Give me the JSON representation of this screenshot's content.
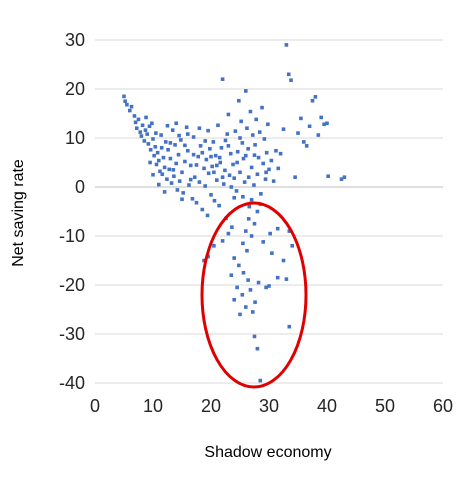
{
  "chart_data": {
    "type": "scatter",
    "title": "",
    "xlabel": "Shadow economy",
    "ylabel": "Net saving rate",
    "xlim": [
      0,
      60
    ],
    "ylim": [
      -40,
      30
    ],
    "x_ticks": [
      "0",
      "10",
      "20",
      "30",
      "40",
      "50",
      "60"
    ],
    "y_ticks": [
      "30",
      "20",
      "10",
      "0",
      "-10",
      "-20",
      "-30",
      "-40"
    ],
    "grid": "horizontal",
    "legend": "none",
    "annotation": "red ellipse highlighting low-saving observations",
    "series": [
      {
        "marker_color": "#4472c4",
        "points": [
          [
            5.0,
            18.5
          ],
          [
            5.2,
            17.5
          ],
          [
            5.5,
            16.8
          ],
          [
            6.0,
            15.6
          ],
          [
            6.3,
            16.4
          ],
          [
            6.8,
            14.5
          ],
          [
            7.0,
            13.2
          ],
          [
            7.2,
            12.0
          ],
          [
            7.5,
            13.8
          ],
          [
            7.8,
            11.2
          ],
          [
            8.0,
            10.4
          ],
          [
            8.2,
            12.6
          ],
          [
            8.5,
            9.4
          ],
          [
            8.7,
            11.6
          ],
          [
            9.0,
            10.8
          ],
          [
            9.2,
            8.8
          ],
          [
            9.4,
            12.4
          ],
          [
            9.6,
            7.6
          ],
          [
            9.8,
            13.0
          ],
          [
            10.0,
            9.8
          ],
          [
            10.2,
            6.4
          ],
          [
            10.4,
            8.2
          ],
          [
            10.6,
            4.6
          ],
          [
            10.8,
            7.0
          ],
          [
            11.0,
            5.4
          ],
          [
            11.2,
            3.2
          ],
          [
            11.4,
            10.6
          ],
          [
            11.6,
            2.6
          ],
          [
            11.8,
            6.0
          ],
          [
            12.0,
            4.0
          ],
          [
            12.2,
            9.2
          ],
          [
            12.4,
            1.6
          ],
          [
            12.6,
            7.6
          ],
          [
            12.8,
            3.6
          ],
          [
            13.0,
            5.8
          ],
          [
            13.2,
            0.8
          ],
          [
            13.4,
            11.6
          ],
          [
            13.6,
            2.2
          ],
          [
            13.8,
            8.6
          ],
          [
            14.0,
            4.8
          ],
          [
            14.2,
            -0.6
          ],
          [
            14.4,
            6.6
          ],
          [
            14.6,
            1.2
          ],
          [
            14.8,
            9.6
          ],
          [
            15.0,
            3.0
          ],
          [
            15.2,
            -1.2
          ],
          [
            15.5,
            5.2
          ],
          [
            15.8,
            12.2
          ],
          [
            16.0,
            7.4
          ],
          [
            16.2,
            0.4
          ],
          [
            16.5,
            4.4
          ],
          [
            16.8,
            -2.4
          ],
          [
            17.0,
            10.2
          ],
          [
            17.2,
            2.0
          ],
          [
            17.5,
            -3.2
          ],
          [
            17.8,
            6.2
          ],
          [
            18.0,
            1.0
          ],
          [
            18.2,
            8.4
          ],
          [
            18.5,
            -4.6
          ],
          [
            18.8,
            3.8
          ],
          [
            19.0,
            0.2
          ],
          [
            19.2,
            5.6
          ],
          [
            19.4,
            -5.8
          ],
          [
            19.6,
            2.8
          ],
          [
            19.8,
            7.8
          ],
          [
            20.0,
            -1.6
          ],
          [
            20.2,
            4.2
          ],
          [
            20.4,
            9.2
          ],
          [
            20.6,
            -2.8
          ],
          [
            20.8,
            6.4
          ],
          [
            21.0,
            1.4
          ],
          [
            21.2,
            12.6
          ],
          [
            21.4,
            -3.8
          ],
          [
            21.6,
            5.0
          ],
          [
            21.8,
            8.0
          ],
          [
            22.0,
            22.0
          ],
          [
            22.2,
            0.6
          ],
          [
            22.4,
            3.4
          ],
          [
            22.6,
            -6.4
          ],
          [
            22.8,
            10.8
          ],
          [
            23.0,
            14.8
          ],
          [
            23.2,
            2.4
          ],
          [
            23.4,
            6.8
          ],
          [
            23.6,
            -8.2
          ],
          [
            23.8,
            4.6
          ],
          [
            24.0,
            1.8
          ],
          [
            24.2,
            11.4
          ],
          [
            24.4,
            -0.8
          ],
          [
            24.6,
            7.2
          ],
          [
            24.8,
            17.6
          ],
          [
            25.0,
            3.0
          ],
          [
            25.2,
            13.4
          ],
          [
            25.4,
            9.0
          ],
          [
            25.6,
            5.8
          ],
          [
            25.8,
            1.0
          ],
          [
            26.0,
            19.6
          ],
          [
            26.2,
            12.0
          ],
          [
            26.4,
            7.8
          ],
          [
            26.6,
            -4.0
          ],
          [
            26.8,
            15.4
          ],
          [
            27.0,
            4.0
          ],
          [
            27.2,
            10.6
          ],
          [
            27.4,
            0.4
          ],
          [
            27.6,
            8.6
          ],
          [
            27.8,
            13.8
          ],
          [
            28.0,
            2.6
          ],
          [
            28.2,
            6.0
          ],
          [
            28.4,
            11.2
          ],
          [
            28.6,
            -1.4
          ],
          [
            28.8,
            16.2
          ],
          [
            29.0,
            4.8
          ],
          [
            29.2,
            9.8
          ],
          [
            29.4,
            1.6
          ],
          [
            29.6,
            7.0
          ],
          [
            29.8,
            12.8
          ],
          [
            30.0,
            3.6
          ],
          [
            30.4,
            5.4
          ],
          [
            30.8,
            1.2
          ],
          [
            31.2,
            7.4
          ],
          [
            31.6,
            3.8
          ],
          [
            32.0,
            6.8
          ],
          [
            32.5,
            11.8
          ],
          [
            33.0,
            29.0
          ],
          [
            33.4,
            23.0
          ],
          [
            33.8,
            21.8
          ],
          [
            34.5,
            2.0
          ],
          [
            35.0,
            11.0
          ],
          [
            35.5,
            14.0
          ],
          [
            36.0,
            9.2
          ],
          [
            36.5,
            8.4
          ],
          [
            37.0,
            12.4
          ],
          [
            37.5,
            17.6
          ],
          [
            38.0,
            18.4
          ],
          [
            38.5,
            10.6
          ],
          [
            39.0,
            14.2
          ],
          [
            39.5,
            12.8
          ],
          [
            40.0,
            13.0
          ],
          [
            40.2,
            2.2
          ],
          [
            42.5,
            1.6
          ],
          [
            43.0,
            2.0
          ],
          [
            9.5,
            5.0
          ],
          [
            10.5,
            11.0
          ],
          [
            11.5,
            8.0
          ],
          [
            12.5,
            12.5
          ],
          [
            13.5,
            3.5
          ],
          [
            14.5,
            10.5
          ],
          [
            15.5,
            8.5
          ],
          [
            16.5,
            1.5
          ],
          [
            17.5,
            4.5
          ],
          [
            18.5,
            7.0
          ],
          [
            19.5,
            11.5
          ],
          [
            20.5,
            3.0
          ],
          [
            21.5,
            6.0
          ],
          [
            22.5,
            9.5
          ],
          [
            23.5,
            0.0
          ],
          [
            24.5,
            5.0
          ],
          [
            25.5,
            -2.0
          ],
          [
            26.5,
            2.0
          ],
          [
            27.5,
            6.5
          ],
          [
            28.5,
            -3.5
          ],
          [
            29.5,
            3.0
          ],
          [
            8.8,
            14.2
          ],
          [
            10.0,
            2.5
          ],
          [
            11.0,
            0.5
          ],
          [
            12.0,
            -1.0
          ],
          [
            13.0,
            9.0
          ],
          [
            14.0,
            13.0
          ],
          [
            15.0,
            -2.5
          ],
          [
            16.0,
            10.8
          ],
          [
            17.0,
            6.6
          ],
          [
            18.0,
            12.0
          ],
          [
            19.0,
            9.4
          ],
          [
            20.0,
            6.2
          ],
          [
            21.0,
            4.4
          ],
          [
            22.0,
            2.0
          ],
          [
            23.0,
            8.4
          ],
          [
            24.0,
            -2.2
          ],
          [
            25.0,
            10.0
          ],
          [
            26.0,
            6.4
          ],
          [
            27.0,
            -2.6
          ],
          [
            26.0,
            -9.0
          ],
          [
            26.5,
            -6.5
          ],
          [
            27.0,
            -10.0
          ],
          [
            27.5,
            -7.5
          ],
          [
            28.0,
            -5.0
          ],
          [
            25.5,
            -11.5
          ],
          [
            26.2,
            -13.0
          ],
          [
            24.0,
            -14.5
          ],
          [
            24.8,
            -16.0
          ],
          [
            25.6,
            -17.5
          ],
          [
            26.4,
            -19.0
          ],
          [
            23.5,
            -18.0
          ],
          [
            24.5,
            -20.5
          ],
          [
            25.4,
            -22.0
          ],
          [
            26.8,
            -21.0
          ],
          [
            27.6,
            -23.5
          ],
          [
            28.2,
            -19.5
          ],
          [
            29.5,
            -20.5
          ],
          [
            30.0,
            -20.2
          ],
          [
            31.5,
            -18.5
          ],
          [
            33.0,
            -18.8
          ],
          [
            32.5,
            -15.0
          ],
          [
            33.5,
            -28.5
          ],
          [
            27.5,
            -30.5
          ],
          [
            28.0,
            -33.0
          ],
          [
            28.5,
            -39.5
          ],
          [
            27.2,
            -25.5
          ],
          [
            30.2,
            -9.5
          ],
          [
            31.5,
            -8.5
          ],
          [
            33.5,
            -9.0
          ],
          [
            34.0,
            -12.0
          ],
          [
            23.0,
            -9.5
          ],
          [
            22.0,
            -11.0
          ],
          [
            20.5,
            -12.0
          ],
          [
            19.5,
            -14.2
          ],
          [
            18.8,
            -15.0
          ],
          [
            24.0,
            -23.0
          ],
          [
            25.0,
            -26.0
          ],
          [
            26.0,
            -24.5
          ],
          [
            29.0,
            -11.2
          ],
          [
            30.5,
            -13.5
          ]
        ]
      }
    ]
  }
}
